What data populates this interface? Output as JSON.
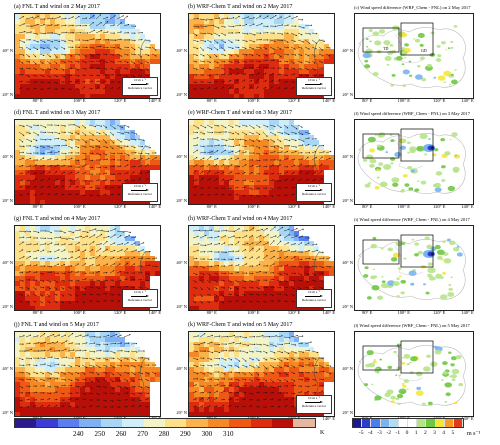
{
  "panels": [
    {
      "title": "(a) FNL T and wind on 2 May 2017",
      "kind": "temp",
      "ref": true
    },
    {
      "title": "(b) WRF-Chem T and  wind on 2 May 2017",
      "kind": "temp",
      "ref": true
    },
    {
      "title": "(c) Wind speed difference (WRF_Chem - FNL) on 2 May 2017",
      "kind": "diff",
      "boxlabels": [
        "TD",
        "GD"
      ]
    },
    {
      "title": "(d) FNL T and wind on 3 May 2017",
      "kind": "temp",
      "ref": true
    },
    {
      "title": "(e) WRF-Chem T and  wind on 3 May 2017",
      "kind": "temp",
      "ref": true
    },
    {
      "title": "(f) Wind speed difference (WRF_Chem - FNL) on 3 May 2017",
      "kind": "diff"
    },
    {
      "title": "(g) FNL T and wind on 4 May 2017",
      "kind": "temp",
      "ref": true
    },
    {
      "title": "(h) WRF-Chem T and  wind on 4 May 2017",
      "kind": "temp",
      "ref": true
    },
    {
      "title": "(i) Wind speed difference (WRF_Chem - FNL) on 4 May 2017",
      "kind": "diff"
    },
    {
      "title": "(j) FNL T and wind on 5 May 2017",
      "kind": "temp",
      "ref": false
    },
    {
      "title": "(k) WRF-Chem T and  wind on 5 May 2017",
      "kind": "temp",
      "ref": true
    },
    {
      "title": "(l) Wind speed difference (WRF_Chem - FNL) on 5 May 2017",
      "kind": "diff"
    }
  ],
  "reference_vector": {
    "value": "10 m s⁻¹",
    "label": "Reference vector"
  },
  "lon_ticks": [
    "80° E",
    "100° E",
    "120° E",
    "140° E"
  ],
  "lat_ticks": [
    "40° N",
    "20° N"
  ],
  "temp_colorbar": {
    "labels": [
      "240",
      "250",
      "260",
      "270",
      "280",
      "290",
      "300",
      "310"
    ],
    "unit": "K",
    "colors": [
      "#2a1a8c",
      "#3c3cd6",
      "#5a7ef0",
      "#7fb0f5",
      "#a7d7f5",
      "#cfeefa",
      "#f3f3c8",
      "#fde08a",
      "#fbb34b",
      "#f58a25",
      "#ee5a15",
      "#de2c10",
      "#b81008",
      "#e6b7a0"
    ]
  },
  "diff_colorbar": {
    "labels": [
      "-5",
      "-4",
      "-3",
      "-2",
      "-1",
      "0",
      "1",
      "2",
      "3",
      "4",
      "5"
    ],
    "unit": "m s⁻¹",
    "colors": [
      "#1a1a8c",
      "#2e3ec8",
      "#4a7ee8",
      "#78b4f0",
      "#b0dcf2",
      "#ffffff",
      "#ffffff",
      "#b6e38a",
      "#6fc843",
      "#f5e63a",
      "#f59b22",
      "#e23b18"
    ]
  }
}
